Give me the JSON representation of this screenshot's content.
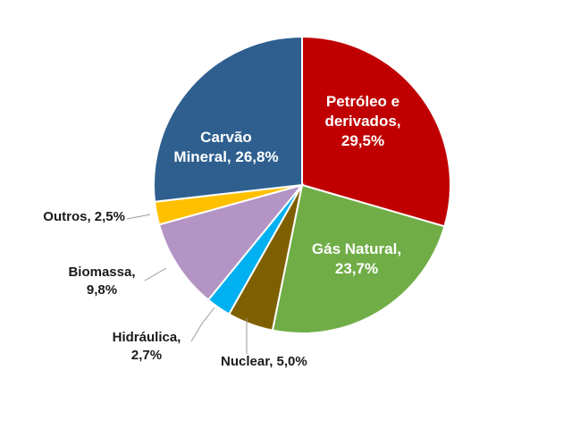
{
  "chart_data": {
    "type": "pie",
    "categories": [
      "Petróleo e derivados,",
      "Gás Natural,",
      "Nuclear,",
      "Hidráulica,",
      "Biomassa,",
      "Outros,",
      "Carvão Mineral,"
    ],
    "values": [
      29.5,
      23.7,
      5.0,
      2.7,
      9.8,
      2.5,
      26.8
    ],
    "value_labels": [
      "29,5%",
      "23,7%",
      "5,0%",
      "2,7%",
      "9,8%",
      "2,5%",
      "26,8%"
    ],
    "colors": [
      "#c00000",
      "#70ad47",
      "#7f6000",
      "#00b0f0",
      "#b394c4",
      "#ffc000",
      "#2e5f8f"
    ]
  }
}
